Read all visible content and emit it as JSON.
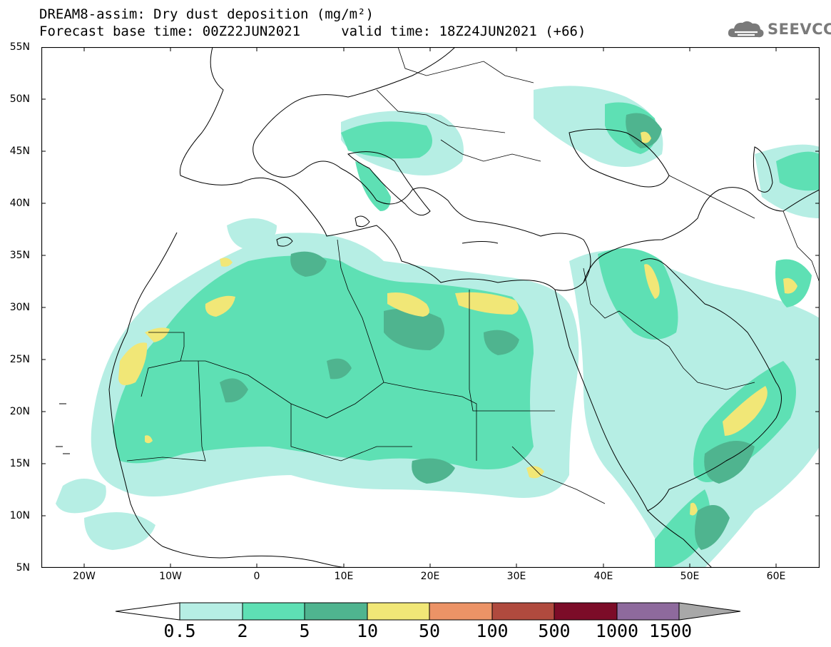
{
  "header": {
    "title_line1": "DREAM8-assim: Dry dust deposition (mg/m²)",
    "title_line2": "Forecast base time: 00Z22JUN2021     valid time: 18Z24JUN2021 (+66)"
  },
  "logo": {
    "text": "SEEVCCC",
    "icon": "cloud-logo-icon",
    "color": "#7a7a7a"
  },
  "map": {
    "lon_range": [
      -25,
      65
    ],
    "lat_range": [
      5,
      55
    ],
    "lat_labels": [
      "55N",
      "50N",
      "45N",
      "40N",
      "35N",
      "30N",
      "25N",
      "20N",
      "15N",
      "10N",
      "5N"
    ],
    "lon_labels": [
      "20W",
      "10W",
      "0",
      "10E",
      "20E",
      "30E",
      "40E",
      "50E",
      "60E"
    ]
  },
  "legend": {
    "thresholds": [
      "0.5",
      "2",
      "5",
      "10",
      "50",
      "100",
      "500",
      "1000",
      "1500"
    ],
    "colors": [
      "#b6eee4",
      "#5ee0b4",
      "#4fb48f",
      "#f1e777",
      "#ec9366",
      "#b04a3e",
      "#7c0c28",
      "#8e6a9d"
    ],
    "under_color": "#ffffff",
    "over_color": "#a8a8a8"
  }
}
